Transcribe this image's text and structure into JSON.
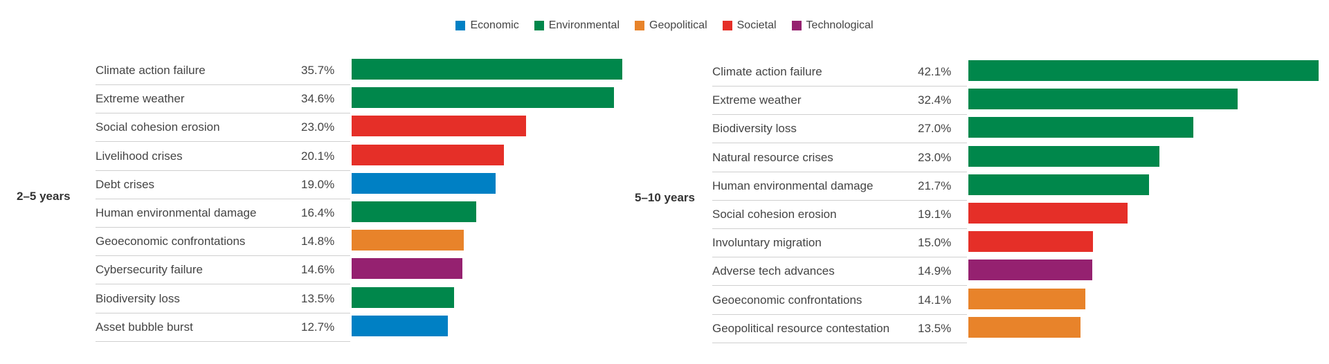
{
  "legend": [
    {
      "label": "Economic",
      "color": "#0080c4"
    },
    {
      "label": "Environmental",
      "color": "#00874b"
    },
    {
      "label": "Geopolitical",
      "color": "#e8832a"
    },
    {
      "label": "Societal",
      "color": "#e52f28"
    },
    {
      "label": "Technological",
      "color": "#952170"
    }
  ],
  "chart_data": [
    {
      "type": "bar",
      "title": "2–5 years",
      "categories": [
        "Climate action failure",
        "Extreme weather",
        "Social cohesion erosion",
        "Livelihood crises",
        "Debt crises",
        "Human environmental damage",
        "Geoeconomic confrontations",
        "Cybersecurity failure",
        "Biodiversity loss",
        "Asset bubble burst"
      ],
      "values": [
        35.7,
        34.6,
        23.0,
        20.1,
        19.0,
        16.4,
        14.8,
        14.6,
        13.5,
        12.7
      ],
      "value_labels": [
        "35.7%",
        "34.6%",
        "23.0%",
        "20.1%",
        "19.0%",
        "16.4%",
        "14.8%",
        "14.6%",
        "13.5%",
        "12.7%"
      ],
      "risk_category": [
        "Environmental",
        "Environmental",
        "Societal",
        "Societal",
        "Economic",
        "Environmental",
        "Geopolitical",
        "Technological",
        "Environmental",
        "Economic"
      ],
      "orientation": "horizontal"
    },
    {
      "type": "bar",
      "title": "5–10 years",
      "categories": [
        "Climate action failure",
        "Extreme weather",
        "Biodiversity loss",
        "Natural resource crises",
        "Human environmental damage",
        "Social cohesion erosion",
        "Involuntary migration",
        "Adverse tech advances",
        "Geoeconomic confrontations",
        "Geopolitical resource contestation"
      ],
      "values": [
        42.1,
        32.4,
        27.0,
        23.0,
        21.7,
        19.1,
        15.0,
        14.9,
        14.1,
        13.5
      ],
      "value_labels": [
        "42.1%",
        "32.4%",
        "27.0%",
        "23.0%",
        "21.7%",
        "19.1%",
        "15.0%",
        "14.9%",
        "14.1%",
        "13.5%"
      ],
      "risk_category": [
        "Environmental",
        "Environmental",
        "Environmental",
        "Environmental",
        "Environmental",
        "Societal",
        "Societal",
        "Technological",
        "Geopolitical",
        "Geopolitical"
      ],
      "orientation": "horizontal"
    }
  ]
}
